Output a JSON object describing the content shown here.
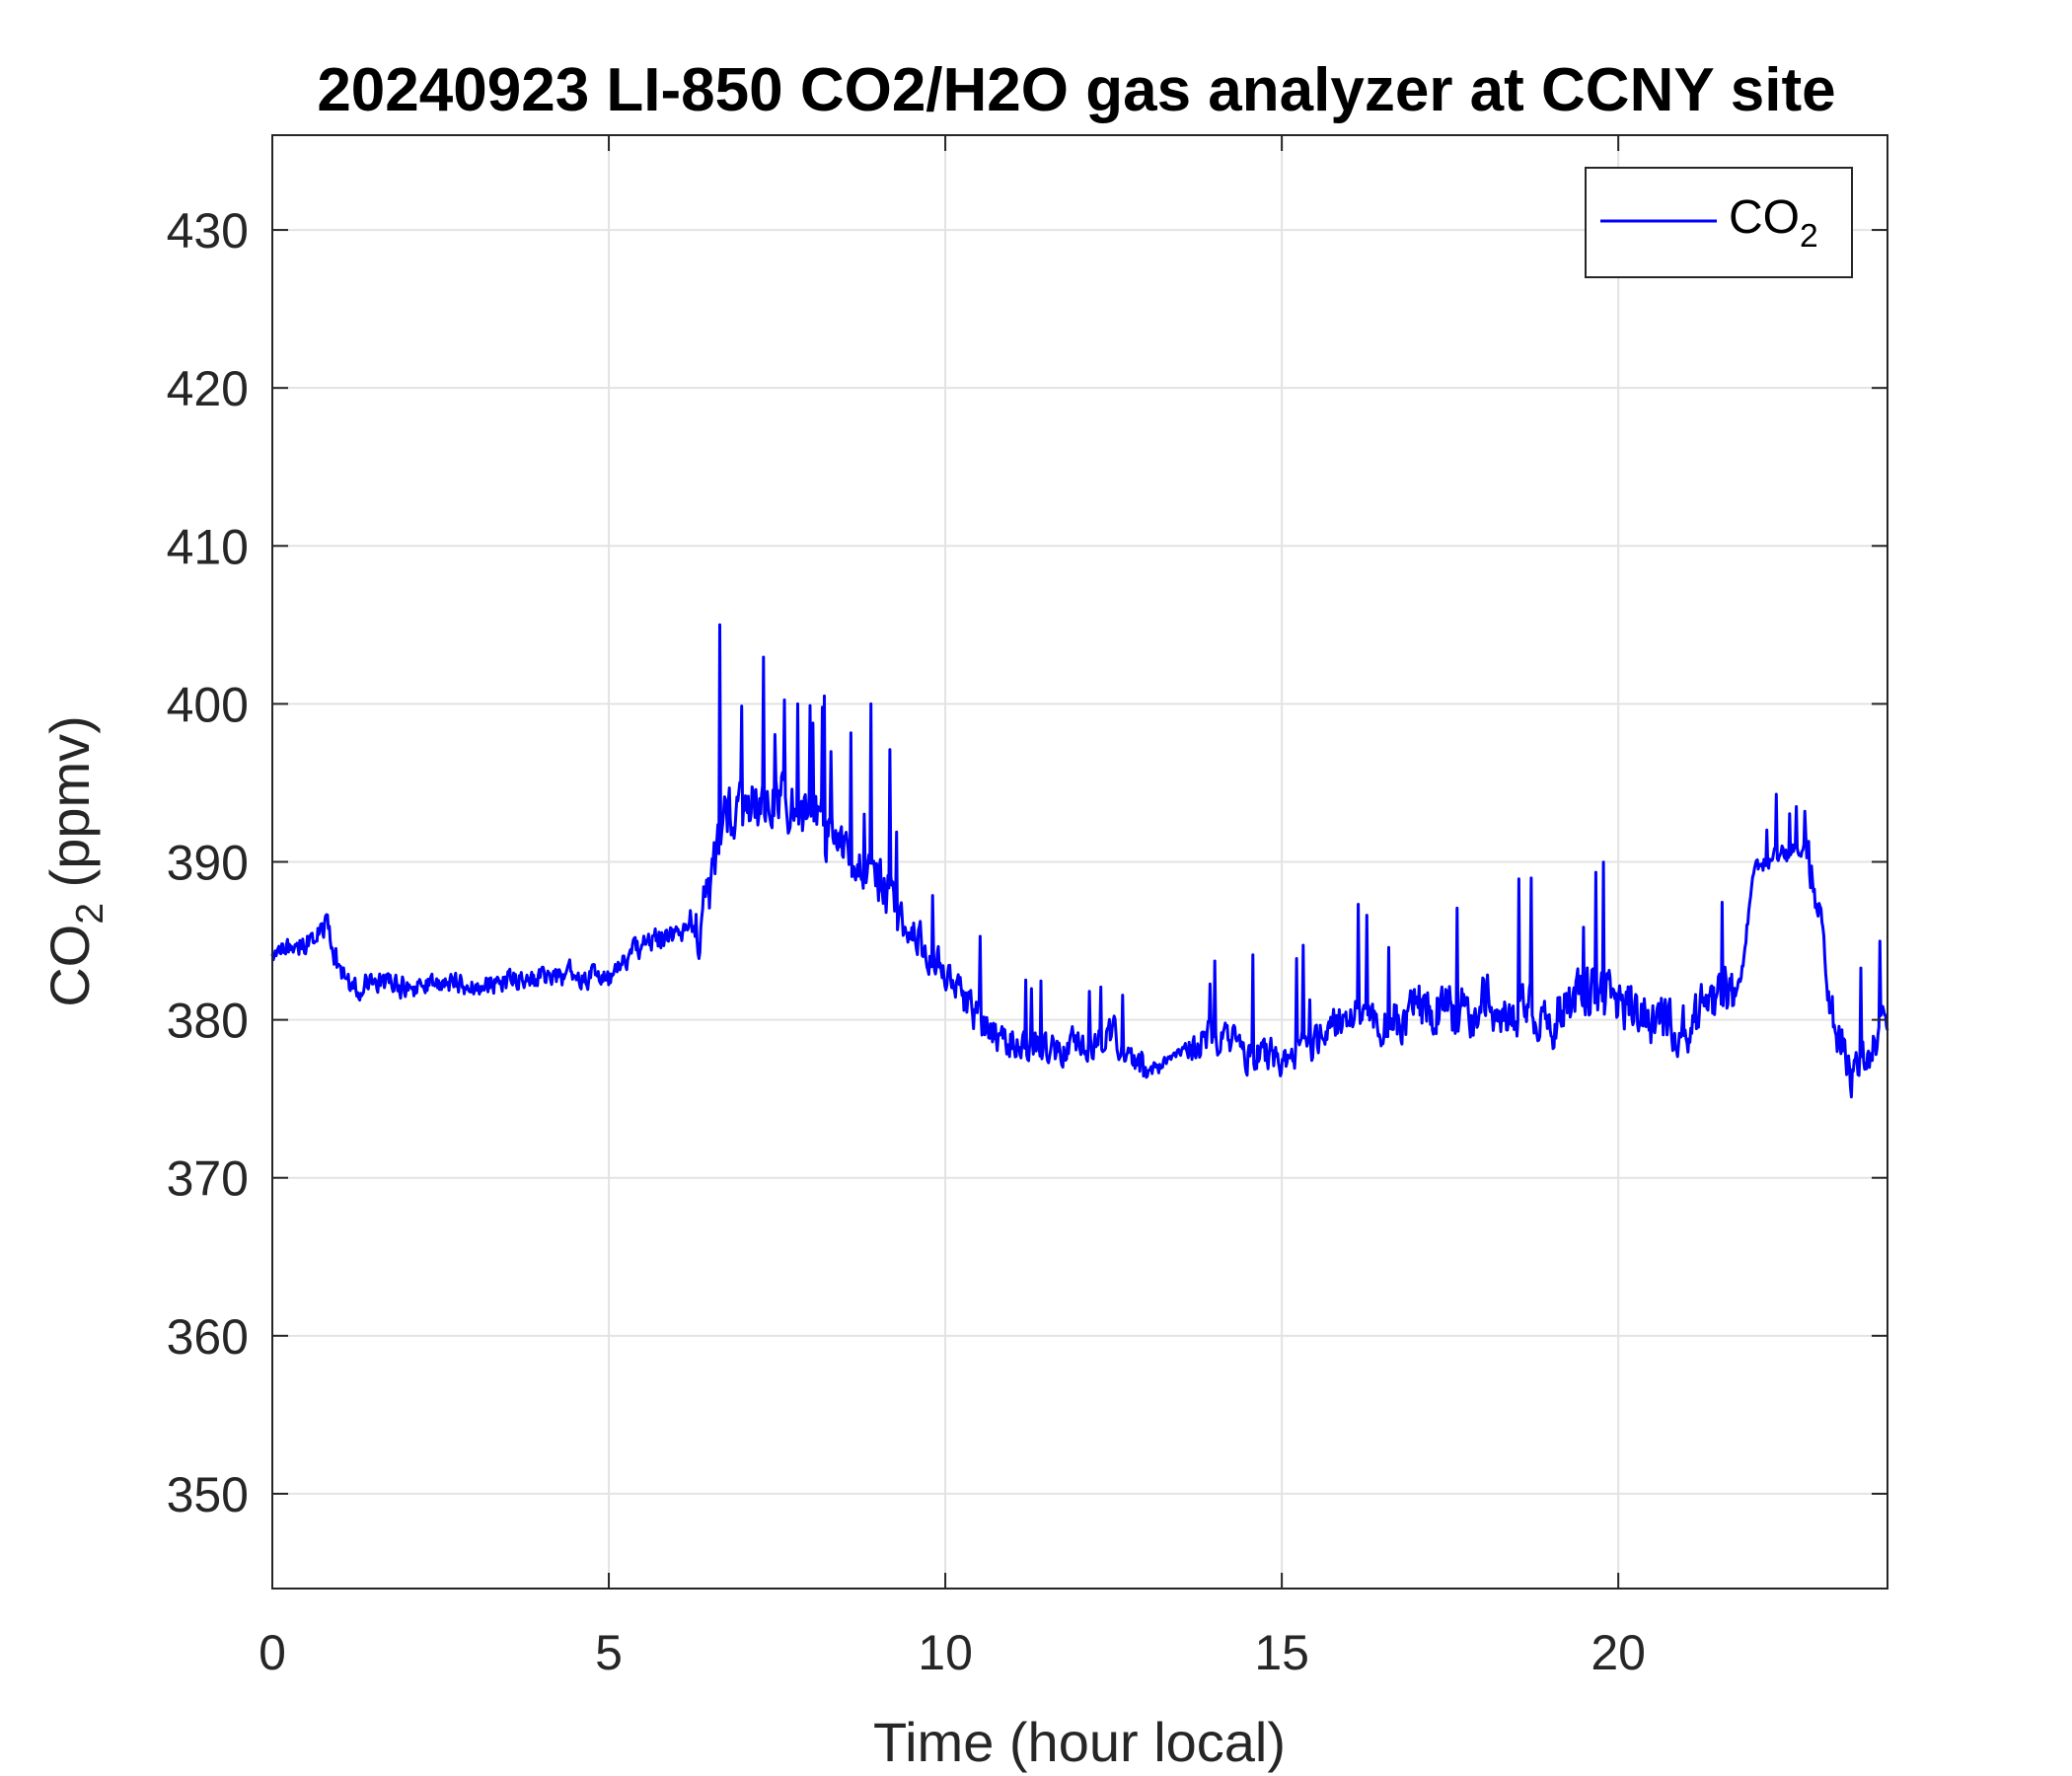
{
  "chart_data": {
    "type": "line",
    "title": "20240923 LI-850 CO2/H2O gas analyzer at CCNY site",
    "xlabel": "Time (hour local)",
    "ylabel": {
      "main": "CO",
      "sub": "2",
      "suffix": " (ppmv)"
    },
    "xlim": [
      0,
      24
    ],
    "ylim": [
      344,
      436
    ],
    "xticks": [
      0,
      5,
      10,
      15,
      20
    ],
    "yticks": [
      350,
      360,
      370,
      380,
      390,
      400,
      410,
      420,
      430
    ],
    "grid": true,
    "legend": {
      "position": "top-right",
      "label_main": "CO",
      "label_sub": "2"
    },
    "series": [
      {
        "name": "CO2",
        "color": "#0000ff",
        "x": [
          0,
          0.25,
          0.5,
          0.8,
          1.0,
          1.2,
          1.5,
          2.0,
          2.5,
          3.0,
          3.5,
          4.0,
          4.5,
          5.0,
          5.3,
          5.6,
          6.0,
          6.3,
          6.5,
          6.7,
          7.0,
          7.3,
          7.6,
          7.8,
          8.0,
          8.3,
          8.6,
          8.9,
          9.2,
          9.5,
          9.8,
          10.1,
          10.4,
          10.7,
          11.0,
          11.5,
          12.0,
          12.5,
          13.0,
          13.5,
          14.0,
          14.5,
          15.0,
          15.5,
          16.0,
          16.5,
          17.0,
          17.5,
          18.0,
          18.5,
          19.0,
          19.5,
          20.0,
          20.5,
          21.0,
          21.5,
          21.8,
          22.0,
          22.3,
          22.6,
          22.8,
          23.0,
          23.2,
          23.5,
          23.8,
          24.0
        ],
        "y": [
          384,
          384.5,
          385,
          386,
          383,
          382,
          382.5,
          382,
          382.5,
          382,
          382.5,
          382.5,
          383,
          382.5,
          384,
          385,
          385.5,
          385.5,
          388,
          392.5,
          393.5,
          394,
          394,
          393,
          393,
          392,
          391,
          390,
          387.5,
          386,
          384,
          382,
          380.5,
          379,
          378.5,
          378,
          378.5,
          379,
          376.5,
          378,
          379,
          378,
          377.5,
          378.5,
          380.5,
          379.5,
          381,
          380.5,
          381,
          380.5,
          380,
          382,
          381,
          380,
          379.5,
          381.5,
          382,
          389,
          390.5,
          390.5,
          391,
          386,
          380,
          376.5,
          378.5,
          380
        ]
      }
    ],
    "annotations": [
      {
        "x": 6.65,
        "y": 405
      },
      {
        "x": 7.8,
        "y": 400
      },
      {
        "x": 8.2,
        "y": 400.5
      },
      {
        "x": 8.9,
        "y": 400
      },
      {
        "x": 22.65,
        "y": 393.5
      }
    ]
  }
}
